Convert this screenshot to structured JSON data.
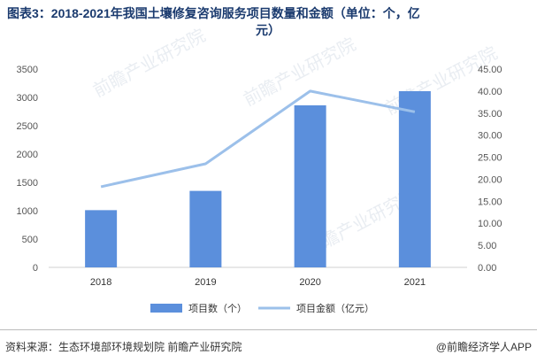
{
  "title_line1": "图表3：2018-2021年我国土壤修复咨询服务项目数量和金额（单位：个，亿",
  "title_line2": "元）",
  "watermarks": [
    "前瞻产业研究院",
    "前瞻产业研究院",
    "前瞻产业研究院",
    "前瞻产业研究院"
  ],
  "footer": {
    "source": "资料来源：生态环境部环境规划院 前瞻产业研究院",
    "brand": "@前瞻经济学人APP"
  },
  "colors": {
    "bar": "#5b8fdc",
    "line": "#9cc0ea",
    "title": "#1a3a6e"
  },
  "chart_data": {
    "type": "bar",
    "categories": [
      "2018",
      "2019",
      "2020",
      "2021"
    ],
    "series": [
      {
        "name": "项目数（个）",
        "type": "bar",
        "axis": "left",
        "values": [
          1010,
          1350,
          2860,
          3110
        ]
      },
      {
        "name": "项目金额（亿元）",
        "type": "line",
        "axis": "right",
        "values": [
          18.3,
          23.5,
          40.0,
          35.3
        ]
      }
    ],
    "y_left": {
      "ylim": [
        0,
        3500
      ],
      "ticks": [
        "0",
        "500",
        "1000",
        "1500",
        "2000",
        "2500",
        "3000",
        "3500"
      ]
    },
    "y_right": {
      "ylim": [
        0,
        45
      ],
      "ticks": [
        "0.00",
        "5.00",
        "10.00",
        "15.00",
        "20.00",
        "25.00",
        "30.00",
        "35.00",
        "40.00",
        "45.00"
      ]
    },
    "grid": false,
    "legend": "bottom"
  }
}
